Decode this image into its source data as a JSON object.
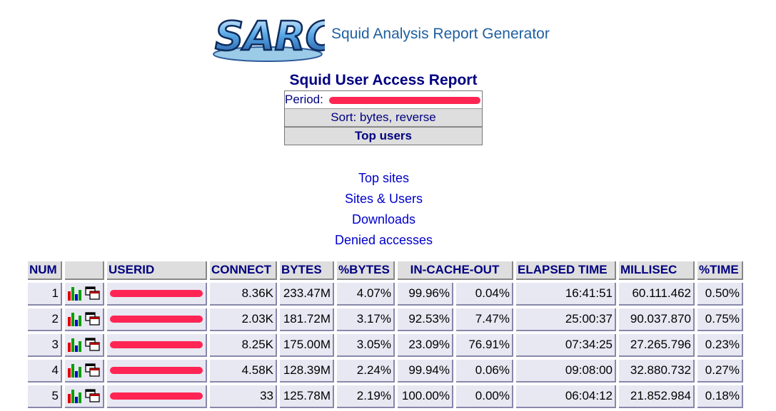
{
  "header": {
    "logo_text": "SARC",
    "app_title": "Squid Analysis Report Generator"
  },
  "report": {
    "title": "Squid User Access Report",
    "period_label": "Period:",
    "sort_label": "Sort: bytes, reverse",
    "top_label": "Top users"
  },
  "nav": {
    "top_sites": "Top sites",
    "sites_users": "Sites & Users",
    "downloads": "Downloads",
    "denied": "Denied accesses"
  },
  "table": {
    "headers": {
      "num": "NUM",
      "userid": "USERID",
      "connect": "CONNECT",
      "bytes": "BYTES",
      "pbytes": "%BYTES",
      "incache": "IN-CACHE-OUT",
      "elapsed": "ELAPSED TIME",
      "millisec": "MILLISEC",
      "ptime": "%TIME"
    },
    "rows": [
      {
        "num": "1",
        "connect": "8.36K",
        "bytes": "233.47M",
        "pbytes": "4.07%",
        "in": "99.96%",
        "out": "0.04%",
        "elapsed": "16:41:51",
        "millisec": "60.111.462",
        "ptime": "0.50%"
      },
      {
        "num": "2",
        "connect": "2.03K",
        "bytes": "181.72M",
        "pbytes": "3.17%",
        "in": "92.53%",
        "out": "7.47%",
        "elapsed": "25:00:37",
        "millisec": "90.037.870",
        "ptime": "0.75%"
      },
      {
        "num": "3",
        "connect": "8.25K",
        "bytes": "175.00M",
        "pbytes": "3.05%",
        "in": "23.09%",
        "out": "76.91%",
        "elapsed": "07:34:25",
        "millisec": "27.265.796",
        "ptime": "0.23%"
      },
      {
        "num": "4",
        "connect": "4.58K",
        "bytes": "128.39M",
        "pbytes": "2.24%",
        "in": "99.94%",
        "out": "0.06%",
        "elapsed": "09:08:00",
        "millisec": "32.880.732",
        "ptime": "0.27%"
      },
      {
        "num": "5",
        "connect": "33",
        "bytes": "125.78M",
        "pbytes": "2.19%",
        "in": "100.00%",
        "out": "0.00%",
        "elapsed": "06:04:12",
        "millisec": "21.852.984",
        "ptime": "0.18%"
      }
    ]
  },
  "icons": {
    "graph": "bar-chart-icon",
    "window": "window-icon"
  },
  "colors": {
    "link": "#0000cc",
    "header_text": "#000080",
    "header_bg": "#dedede",
    "cell_bg": "#e8e8f3",
    "redaction": "#ff1a4b"
  }
}
